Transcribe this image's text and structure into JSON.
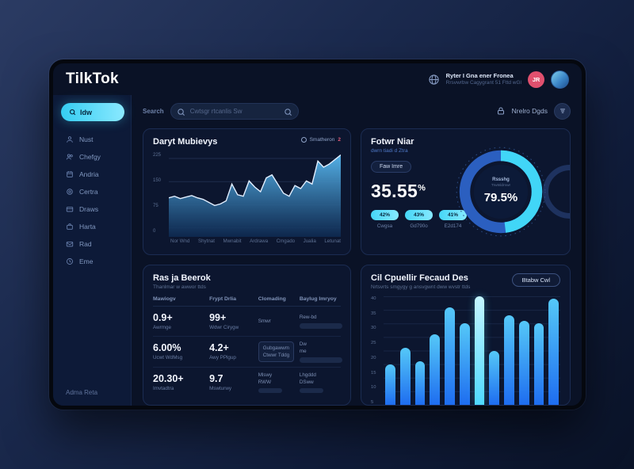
{
  "header": {
    "logo": "TilkTok",
    "user": {
      "line1": "Ryter I Gna ener Fronea",
      "line2": "Rrsvwrbw Cagygrant 51 Fttd wGl",
      "avatar_initials": "JR"
    }
  },
  "sidebar": {
    "active_label": "Idw",
    "items": [
      {
        "label": "Nust"
      },
      {
        "label": "Chefgy"
      },
      {
        "label": "Andria"
      },
      {
        "label": "Certra"
      },
      {
        "label": "Draws"
      },
      {
        "label": "Harta"
      },
      {
        "label": "Rad"
      },
      {
        "label": "Eme"
      }
    ],
    "footer": "Adma Reta"
  },
  "topbar": {
    "search_label": "Search",
    "search_placeholder": "Cwtsgr rtcanlis Sw",
    "settings_label": "Nrelro Dgds"
  },
  "area_card": {
    "title": "Daryt Mubievys",
    "legend_label": "Smatheron",
    "legend_badge": "2",
    "y_labels": [
      "225",
      "150",
      "75",
      "0"
    ]
  },
  "stats_card": {
    "title": "Fotwr Niar",
    "subtitle": "dwrn tiadi d Ztra",
    "badge": "Faw Imre",
    "big_value": "35.55",
    "big_unit": "%",
    "pills": [
      {
        "value": "42%",
        "label": "Cwgsa"
      },
      {
        "value": "43%",
        "label": "Gd790o"
      },
      {
        "value": "41%",
        "label": "E2d174"
      }
    ],
    "donut_label": "Rssshg",
    "donut_sublabel": "Trwtsldmwr",
    "donut_value": "79.5%"
  },
  "table_card": {
    "title": "Ras ja Beerok",
    "subtitle": "Thanlmar w awwor ttds",
    "headers": [
      "Mawiogv",
      "Frypt Drlia",
      "Clomading",
      "Baylug Imryoy"
    ],
    "rows": [
      {
        "stat1": "0.9+",
        "label1": "Awrmge",
        "stat2": "99+",
        "label2": "Wdwr Cirygw",
        "col3a": "Smwr",
        "col3b": "",
        "col4a": "Rew-bd",
        "col4b": ""
      },
      {
        "stat1": "6.00%",
        "label1": "Ucwt WdMsg",
        "stat2": "4.2+",
        "label2": "Awy PPlgup",
        "col3a": "Gubgawwm",
        "col3b": "Ctwwr Tddg",
        "col4a": "Dw",
        "col4b": "me"
      },
      {
        "stat1": "20.30+",
        "label1": "Imvtadtra",
        "stat2": "9.7",
        "label2": "Mswturwy",
        "col3a": "Mlswy",
        "col3b": "RWW",
        "col4a": "Lhgddd",
        "col4b": "DSww"
      }
    ]
  },
  "bars_card": {
    "title": "Cil Cpuellir Fecaud Des",
    "subtitle": "Nrtsvrts smgygy g ansvgwnt dww wvstr ttds",
    "button": "Btabw Cwl"
  },
  "colors": {
    "accent_cyan": "#41d6f7",
    "bar_blue": "#1e6df0",
    "bar_highlight": "#7deaff",
    "avatar_pink": "#e0506e"
  },
  "chart_data": [
    {
      "type": "area",
      "title": "Daryt Mubievys",
      "x_labels": [
        "Nor Wnd",
        "Shytnat",
        "Mwnabit",
        "Ardrawa",
        "Cmgado",
        "Jualia",
        "Letunat"
      ],
      "y_tick_labels": [
        "225",
        "150",
        "75",
        "0"
      ],
      "ylim": [
        0,
        100
      ],
      "values": [
        44,
        46,
        43,
        45,
        47,
        44,
        42,
        38,
        34,
        36,
        40,
        62,
        48,
        46,
        66,
        58,
        52,
        70,
        74,
        62,
        50,
        46,
        60,
        56,
        66,
        62,
        92,
        84,
        88,
        94,
        100
      ]
    },
    {
      "type": "donut",
      "center_value": "79.5%",
      "center_label": "Rssshg",
      "segments": [
        {
          "name": "highlight",
          "value": 48,
          "color": "#41d6f7"
        },
        {
          "name": "base",
          "value": 52,
          "color": "#2b5fc0"
        }
      ]
    },
    {
      "type": "bar",
      "title": "Cil Cpuellir Fecaud Des",
      "values": [
        15,
        21,
        16,
        26,
        36,
        30,
        40,
        20,
        33,
        31,
        30,
        39
      ],
      "highlight_index": 6,
      "ylim": [
        0,
        40
      ],
      "y_tick_labels": [
        "40",
        "35",
        "30",
        "25",
        "20",
        "15",
        "10",
        "5"
      ]
    }
  ]
}
